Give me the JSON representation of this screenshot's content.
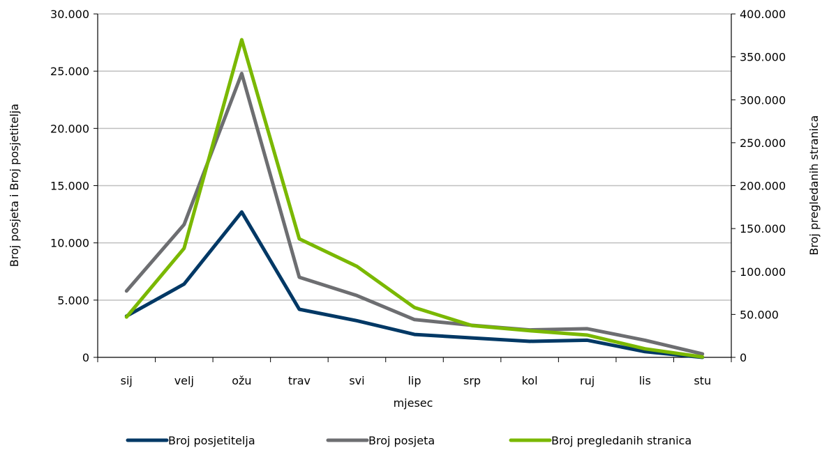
{
  "chart_data": {
    "type": "line",
    "title": "",
    "xlabel": "mjesec",
    "ylabel_left": "Broj posjeta i Broj  posjetitelja",
    "ylabel_right": "Broj pregledanih stranica",
    "ylim_left": [
      0,
      30000
    ],
    "ylim_right": [
      0,
      400000
    ],
    "yticks_left": [
      "0",
      "5.000",
      "10.000",
      "15.000",
      "20.000",
      "25.000",
      "30.000"
    ],
    "yticks_right": [
      "0",
      "50.000",
      "100.000",
      "150.000",
      "200.000",
      "250.000",
      "300.000",
      "350.000",
      "400.000"
    ],
    "grid": true,
    "legend_position": "bottom",
    "categories": [
      "sij",
      "velj",
      "ožu",
      "trav",
      "svi",
      "lip",
      "srp",
      "kol",
      "ruj",
      "lis",
      "stu"
    ],
    "series": [
      {
        "name": "Broj posjetitelja",
        "axis": "left",
        "color": "#003865",
        "values": [
          3600,
          6400,
          12700,
          4200,
          3200,
          2000,
          1700,
          1400,
          1500,
          500,
          0
        ]
      },
      {
        "name": "Broj posjeta",
        "axis": "left",
        "color": "#6d6e71",
        "values": [
          5800,
          11600,
          24800,
          7000,
          5400,
          3300,
          2800,
          2400,
          2500,
          1500,
          300
        ]
      },
      {
        "name": "Broj pregledanih stranica",
        "axis": "right",
        "color": "#7ab800",
        "values": [
          47000,
          127000,
          370000,
          138000,
          106000,
          58000,
          37000,
          31000,
          26000,
          10000,
          500
        ]
      }
    ]
  }
}
